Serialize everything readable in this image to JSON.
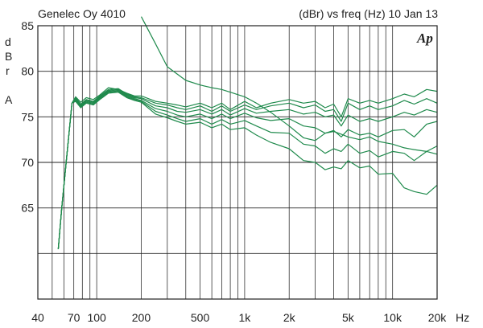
{
  "chart_data": {
    "type": "line",
    "title_left": "Genelec Oy 4010",
    "title_right": "(dBr) vs freq (Hz) 10 Jan 13",
    "logo": "Ap",
    "ylabel": [
      "d",
      "B",
      "r",
      "A"
    ],
    "xlabel": "Hz",
    "x_scale": "log",
    "xlim": [
      40,
      20000
    ],
    "ylim": [
      55,
      85
    ],
    "x_ticks": [
      {
        "value": 40,
        "label": "40"
      },
      {
        "value": 70,
        "label": "70"
      },
      {
        "value": 100,
        "label": "100"
      },
      {
        "value": 200,
        "label": "200"
      },
      {
        "value": 500,
        "label": "500"
      },
      {
        "value": 1000,
        "label": "1k"
      },
      {
        "value": 2000,
        "label": "2k"
      },
      {
        "value": 5000,
        "label": "5k"
      },
      {
        "value": 10000,
        "label": "10k"
      },
      {
        "value": 20000,
        "label": "20k"
      }
    ],
    "y_ticks": [
      {
        "value": 85,
        "label": "85"
      },
      {
        "value": 80,
        "label": "80"
      },
      {
        "value": 75,
        "label": "75"
      },
      {
        "value": 70,
        "label": "70"
      },
      {
        "value": 65,
        "label": "65"
      }
    ],
    "line_color": "#1f8a4c",
    "grid": true,
    "series": [
      {
        "values": [
          [
            55,
            60.5
          ],
          [
            58,
            65
          ],
          [
            63,
            71
          ],
          [
            68,
            76.5
          ],
          [
            72,
            77.2
          ],
          [
            78,
            76.6
          ],
          [
            85,
            77.1
          ],
          [
            95,
            76.9
          ],
          [
            105,
            77.4
          ],
          [
            120,
            78.2
          ],
          [
            140,
            78.0
          ],
          [
            160,
            77.6
          ],
          [
            180,
            77.3
          ],
          [
            200,
            77.3
          ],
          [
            250,
            76.7
          ],
          [
            300,
            76.5
          ],
          [
            350,
            76.3
          ],
          [
            400,
            76.1
          ],
          [
            500,
            76.5
          ],
          [
            600,
            76.0
          ],
          [
            700,
            76.5
          ],
          [
            800,
            75.8
          ],
          [
            1000,
            76.7
          ],
          [
            1200,
            76.0
          ],
          [
            1500,
            76.5
          ],
          [
            2000,
            76.9
          ],
          [
            2500,
            76.5
          ],
          [
            3000,
            76.7
          ],
          [
            3500,
            76.0
          ],
          [
            4000,
            76.4
          ],
          [
            4500,
            75.0
          ],
          [
            5000,
            77.0
          ],
          [
            6000,
            76.5
          ],
          [
            7000,
            76.8
          ],
          [
            8000,
            76.5
          ],
          [
            10000,
            77.0
          ],
          [
            12000,
            77.5
          ],
          [
            14000,
            77.2
          ],
          [
            17000,
            78.0
          ],
          [
            20000,
            77.8
          ]
        ]
      },
      {
        "values": [
          [
            55,
            60.5
          ],
          [
            58,
            65
          ],
          [
            63,
            71
          ],
          [
            68,
            76.5
          ],
          [
            72,
            77.1
          ],
          [
            78,
            76.4
          ],
          [
            85,
            76.9
          ],
          [
            95,
            76.7
          ],
          [
            105,
            77.3
          ],
          [
            120,
            78.0
          ],
          [
            140,
            78.1
          ],
          [
            160,
            77.5
          ],
          [
            180,
            77.2
          ],
          [
            200,
            77.1
          ],
          [
            250,
            76.5
          ],
          [
            300,
            76.3
          ],
          [
            350,
            76.0
          ],
          [
            400,
            75.8
          ],
          [
            500,
            76.2
          ],
          [
            600,
            75.6
          ],
          [
            700,
            76.2
          ],
          [
            800,
            75.6
          ],
          [
            1000,
            76.3
          ],
          [
            1200,
            75.8
          ],
          [
            1500,
            76.2
          ],
          [
            2000,
            76.5
          ],
          [
            2500,
            76.0
          ],
          [
            3000,
            76.3
          ],
          [
            3500,
            75.6
          ],
          [
            4000,
            75.8
          ],
          [
            4500,
            74.5
          ],
          [
            5000,
            76.5
          ],
          [
            6000,
            75.8
          ],
          [
            7000,
            76.2
          ],
          [
            8000,
            75.8
          ],
          [
            10000,
            76.2
          ],
          [
            12000,
            76.8
          ],
          [
            14000,
            76.4
          ],
          [
            17000,
            77.0
          ],
          [
            20000,
            76.5
          ]
        ]
      },
      {
        "values": [
          [
            55,
            60.5
          ],
          [
            58,
            65
          ],
          [
            63,
            71
          ],
          [
            68,
            76.5
          ],
          [
            72,
            77.0
          ],
          [
            78,
            76.3
          ],
          [
            85,
            76.8
          ],
          [
            95,
            76.6
          ],
          [
            105,
            77.2
          ],
          [
            120,
            77.9
          ],
          [
            140,
            78.0
          ],
          [
            160,
            77.4
          ],
          [
            180,
            77.1
          ],
          [
            200,
            77.0
          ],
          [
            250,
            76.2
          ],
          [
            300,
            76.0
          ],
          [
            350,
            75.6
          ],
          [
            400,
            75.5
          ],
          [
            500,
            75.8
          ],
          [
            600,
            75.3
          ],
          [
            700,
            75.8
          ],
          [
            800,
            75.2
          ],
          [
            1000,
            75.9
          ],
          [
            1200,
            75.4
          ],
          [
            1500,
            75.6
          ],
          [
            2000,
            75.8
          ],
          [
            2500,
            75.3
          ],
          [
            3000,
            75.5
          ],
          [
            3500,
            75.0
          ],
          [
            4000,
            75.2
          ],
          [
            4500,
            74.0
          ],
          [
            5000,
            75.2
          ],
          [
            6000,
            74.5
          ],
          [
            7000,
            74.8
          ],
          [
            8000,
            74.5
          ],
          [
            10000,
            75.0
          ],
          [
            12000,
            75.5
          ],
          [
            14000,
            75.2
          ],
          [
            17000,
            75.8
          ],
          [
            20000,
            75.5
          ]
        ]
      },
      {
        "values": [
          [
            55,
            60.5
          ],
          [
            58,
            65
          ],
          [
            63,
            71
          ],
          [
            68,
            76.5
          ],
          [
            72,
            76.9
          ],
          [
            78,
            76.2
          ],
          [
            85,
            76.7
          ],
          [
            95,
            76.5
          ],
          [
            105,
            77.1
          ],
          [
            120,
            77.8
          ],
          [
            140,
            77.9
          ],
          [
            160,
            77.3
          ],
          [
            180,
            77.0
          ],
          [
            200,
            76.8
          ],
          [
            250,
            75.9
          ],
          [
            300,
            75.6
          ],
          [
            350,
            75.2
          ],
          [
            400,
            75.0
          ],
          [
            500,
            75.3
          ],
          [
            600,
            74.8
          ],
          [
            700,
            75.3
          ],
          [
            800,
            74.8
          ],
          [
            1000,
            75.4
          ],
          [
            1200,
            74.9
          ],
          [
            1500,
            74.6
          ],
          [
            2000,
            74.8
          ],
          [
            2500,
            74.0
          ],
          [
            3000,
            73.8
          ],
          [
            3500,
            73.2
          ],
          [
            4000,
            73.5
          ],
          [
            4500,
            72.8
          ],
          [
            5000,
            73.6
          ],
          [
            6000,
            73.0
          ],
          [
            7000,
            73.2
          ],
          [
            8000,
            72.8
          ],
          [
            10000,
            73.5
          ],
          [
            12000,
            73.6
          ],
          [
            14000,
            72.8
          ],
          [
            17000,
            74.2
          ],
          [
            20000,
            74.5
          ]
        ]
      },
      {
        "values": [
          [
            55,
            60.5
          ],
          [
            58,
            65
          ],
          [
            63,
            71
          ],
          [
            68,
            76.5
          ],
          [
            72,
            76.8
          ],
          [
            78,
            76.1
          ],
          [
            85,
            76.6
          ],
          [
            95,
            76.4
          ],
          [
            105,
            77.0
          ],
          [
            120,
            77.7
          ],
          [
            140,
            77.8
          ],
          [
            160,
            77.2
          ],
          [
            180,
            76.9
          ],
          [
            200,
            76.7
          ],
          [
            250,
            75.6
          ],
          [
            300,
            75.2
          ],
          [
            350,
            74.8
          ],
          [
            400,
            74.5
          ],
          [
            500,
            74.8
          ],
          [
            600,
            74.2
          ],
          [
            700,
            74.7
          ],
          [
            800,
            74.2
          ],
          [
            1000,
            74.6
          ],
          [
            1200,
            74.0
          ],
          [
            1500,
            73.3
          ],
          [
            2000,
            73.2
          ],
          [
            2500,
            72.0
          ],
          [
            3000,
            71.8
          ],
          [
            3500,
            71.0
          ],
          [
            4000,
            71.5
          ],
          [
            4500,
            71.2
          ],
          [
            5000,
            72.0
          ],
          [
            6000,
            71.0
          ],
          [
            7000,
            71.3
          ],
          [
            8000,
            70.6
          ],
          [
            10000,
            71.2
          ],
          [
            12000,
            71.0
          ],
          [
            14000,
            70.2
          ],
          [
            17000,
            71.2
          ],
          [
            20000,
            71.8
          ]
        ]
      },
      {
        "values": [
          [
            55,
            60.5
          ],
          [
            58,
            65
          ],
          [
            63,
            71
          ],
          [
            68,
            76.5
          ],
          [
            72,
            76.7
          ],
          [
            78,
            76.0
          ],
          [
            85,
            76.5
          ],
          [
            95,
            76.3
          ],
          [
            105,
            76.9
          ],
          [
            120,
            77.6
          ],
          [
            140,
            77.7
          ],
          [
            160,
            77.1
          ],
          [
            180,
            76.8
          ],
          [
            200,
            76.6
          ],
          [
            250,
            75.3
          ],
          [
            300,
            74.9
          ],
          [
            350,
            74.5
          ],
          [
            400,
            74.2
          ],
          [
            500,
            74.4
          ],
          [
            600,
            73.8
          ],
          [
            700,
            74.2
          ],
          [
            800,
            73.6
          ],
          [
            1000,
            73.8
          ],
          [
            1200,
            73.0
          ],
          [
            1500,
            72.2
          ],
          [
            2000,
            71.5
          ],
          [
            2500,
            70.2
          ],
          [
            3000,
            70.0
          ],
          [
            3500,
            69.2
          ],
          [
            4000,
            69.5
          ],
          [
            4500,
            69.3
          ],
          [
            5000,
            70.2
          ],
          [
            6000,
            69.4
          ],
          [
            7000,
            69.6
          ],
          [
            8000,
            68.7
          ],
          [
            10000,
            68.8
          ],
          [
            12000,
            67.2
          ],
          [
            14000,
            66.8
          ],
          [
            17000,
            66.5
          ],
          [
            20000,
            67.5
          ]
        ]
      },
      {
        "values": [
          [
            200,
            86
          ],
          [
            250,
            83
          ],
          [
            300,
            80.5
          ],
          [
            400,
            79
          ],
          [
            500,
            78.5
          ],
          [
            600,
            78.2
          ],
          [
            700,
            78.0
          ],
          [
            800,
            77.7
          ],
          [
            1000,
            77.2
          ],
          [
            1200,
            76.5
          ],
          [
            1500,
            75.5
          ],
          [
            2000,
            74.0
          ],
          [
            2500,
            72.7
          ],
          [
            3000,
            72.4
          ],
          [
            3500,
            73.2
          ],
          [
            4000,
            73.4
          ],
          [
            4500,
            73.1
          ],
          [
            5000,
            72.8
          ],
          [
            6000,
            72.5
          ],
          [
            7000,
            72.8
          ],
          [
            8000,
            72.3
          ],
          [
            10000,
            72.0
          ],
          [
            12000,
            71.6
          ],
          [
            14000,
            71.4
          ],
          [
            17000,
            71.2
          ],
          [
            20000,
            70.9
          ]
        ]
      }
    ]
  }
}
